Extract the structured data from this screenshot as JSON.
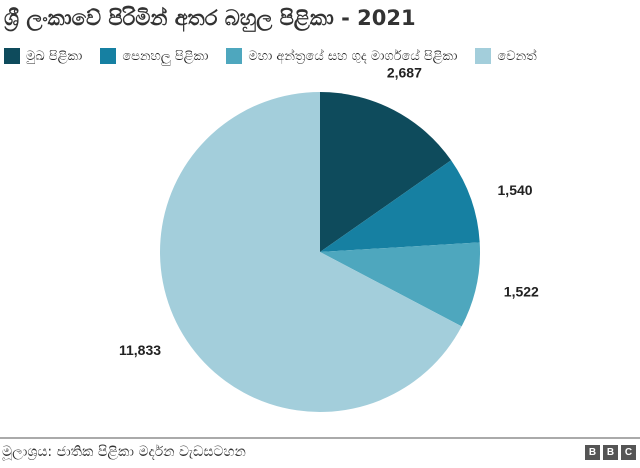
{
  "chart_data": {
    "type": "pie",
    "title": "ශ්‍රී ලංකාවේ පිරිමින් අතර බහුල පිළිකා - 2021",
    "categories": [
      "මුඛ පිළිකා",
      "පෙනහලු පිළිකා",
      "මහා අන්ත්‍රයේ සහ ගුද මාර්ගයේ පිළිකා",
      "වෙනත්"
    ],
    "values": [
      2687,
      1540,
      1522,
      11833
    ],
    "data_labels": [
      "2,687",
      "1,540",
      "1,522",
      "11,833"
    ],
    "colors": [
      "#0e4b5c",
      "#1680a2",
      "#4ea7be",
      "#a3cedb"
    ],
    "legend_placement": "top",
    "start_angle": "12 o'clock",
    "direction": "clockwise"
  },
  "footer": {
    "source": "මූලාශ්‍රය: ජාතික පිළිකා මර්දන වැඩසටහන",
    "logo": [
      "B",
      "B",
      "C"
    ]
  }
}
